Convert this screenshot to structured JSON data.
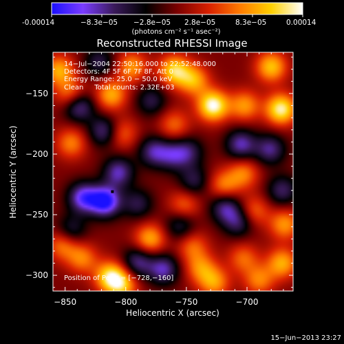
{
  "colorbar": {
    "tick_labels": [
      "-0.00014",
      "−8.3e−05",
      "−2.8e−05",
      "2.8e−05",
      "8.3e−05",
      "0.00014"
    ],
    "units": "(photons cm⁻² s⁻¹ asec⁻²)",
    "colormap": [
      "#1a10ff",
      "#7a3cff",
      "#3a1a5a",
      "#000000",
      "#7a0000",
      "#d82000",
      "#ff7a00",
      "#ffd000",
      "#ffffff"
    ]
  },
  "chart_data": {
    "type": "heatmap",
    "title": "Reconstructed RHESSI Image",
    "xlabel": "Heliocentric X (arcsec)",
    "ylabel": "Heliocentric Y (arcsec)",
    "xlim": [
      -860,
      -662
    ],
    "ylim": [
      -313,
      -116
    ],
    "x_ticks": [
      -850,
      -800,
      -750,
      -700
    ],
    "x_tick_labels": [
      "−850",
      "−800",
      "−750",
      "−700"
    ],
    "y_ticks": [
      -150,
      -200,
      -250,
      -300
    ],
    "y_tick_labels": [
      "−150",
      "−200",
      "−250",
      "−300"
    ],
    "vmin": -0.00014,
    "vmax": 0.00014,
    "annotation_lines": [
      "14−Jul−2004 22:50:16.000 to 22:52:48.000",
      "Detectors: 4F 5F 6F 7F 8F, Att 0",
      "Energy Range: 25.0 − 50.0 keV",
      "Clean     Total counts: 2.32E+03"
    ],
    "peak_label": "Position of Peak = [−728,−160]",
    "marker": {
      "x": -811,
      "y": -231
    },
    "sources": [
      {
        "x": -855,
        "y": -131,
        "v": 9e-05
      },
      {
        "x": -845,
        "y": -151,
        "v": 8e-05
      },
      {
        "x": -845,
        "y": -191,
        "v": 7e-05
      },
      {
        "x": -812,
        "y": -151,
        "v": 9e-05
      },
      {
        "x": -795,
        "y": -128,
        "v": 8e-05
      },
      {
        "x": -803,
        "y": -183,
        "v": 6e-05
      },
      {
        "x": -760,
        "y": -131,
        "v": 0.00011
      },
      {
        "x": -744,
        "y": -139,
        "v": 9e-05
      },
      {
        "x": -728,
        "y": -160,
        "v": 0.00014
      },
      {
        "x": -702,
        "y": -160,
        "v": 8e-05
      },
      {
        "x": -680,
        "y": -128,
        "v": 0.0001
      },
      {
        "x": -672,
        "y": -163,
        "v": 0.00013
      },
      {
        "x": -760,
        "y": -176,
        "v": 6e-05
      },
      {
        "x": -703,
        "y": -216,
        "v": 7e-05
      },
      {
        "x": -719,
        "y": -226,
        "v": 7e-05
      },
      {
        "x": -694,
        "y": -247,
        "v": 6e-05
      },
      {
        "x": -669,
        "y": -258,
        "v": 8e-05
      },
      {
        "x": -852,
        "y": -275,
        "v": 7e-05
      },
      {
        "x": -836,
        "y": -286,
        "v": 7e-05
      },
      {
        "x": -813,
        "y": -301,
        "v": 0.00011
      },
      {
        "x": -803,
        "y": -308,
        "v": 9e-05
      },
      {
        "x": -780,
        "y": -270,
        "v": 9e-05
      },
      {
        "x": -752,
        "y": -242,
        "v": 6e-05
      },
      {
        "x": -745,
        "y": -276,
        "v": 6e-05
      },
      {
        "x": -738,
        "y": -294,
        "v": 7e-05
      },
      {
        "x": -727,
        "y": -306,
        "v": 8e-05
      },
      {
        "x": -703,
        "y": -286,
        "v": 6e-05
      },
      {
        "x": -671,
        "y": -290,
        "v": 9e-05
      },
      {
        "x": -690,
        "y": -304,
        "v": 7e-05
      },
      {
        "x": -817,
        "y": -239,
        "v": -0.00014
      },
      {
        "x": -835,
        "y": -236,
        "v": -0.00011
      },
      {
        "x": -806,
        "y": -215,
        "v": -9e-05
      },
      {
        "x": -839,
        "y": -160,
        "v": -0.0001
      },
      {
        "x": -818,
        "y": -181,
        "v": -8e-05
      },
      {
        "x": -822,
        "y": -124,
        "v": -6e-05
      },
      {
        "x": -777,
        "y": -198,
        "v": -8e-05
      },
      {
        "x": -761,
        "y": -201,
        "v": -7e-05
      },
      {
        "x": -748,
        "y": -198,
        "v": -6e-05
      },
      {
        "x": -779,
        "y": -156,
        "v": -6e-05
      },
      {
        "x": -705,
        "y": -192,
        "v": -9e-05
      },
      {
        "x": -681,
        "y": -196,
        "v": -8e-05
      },
      {
        "x": -718,
        "y": -244,
        "v": -8e-05
      },
      {
        "x": -744,
        "y": -222,
        "v": -6e-05
      },
      {
        "x": -755,
        "y": -259,
        "v": -6e-05
      },
      {
        "x": -790,
        "y": -241,
        "v": -6e-05
      },
      {
        "x": -790,
        "y": -289,
        "v": -8e-05
      },
      {
        "x": -769,
        "y": -295,
        "v": -9e-05
      },
      {
        "x": -845,
        "y": -263,
        "v": -6e-05
      },
      {
        "x": -707,
        "y": -256,
        "v": -7e-05
      },
      {
        "x": -671,
        "y": -230,
        "v": -7e-05
      }
    ]
  },
  "footer": {
    "timestamp": "15−Jun−2013 23:27"
  }
}
